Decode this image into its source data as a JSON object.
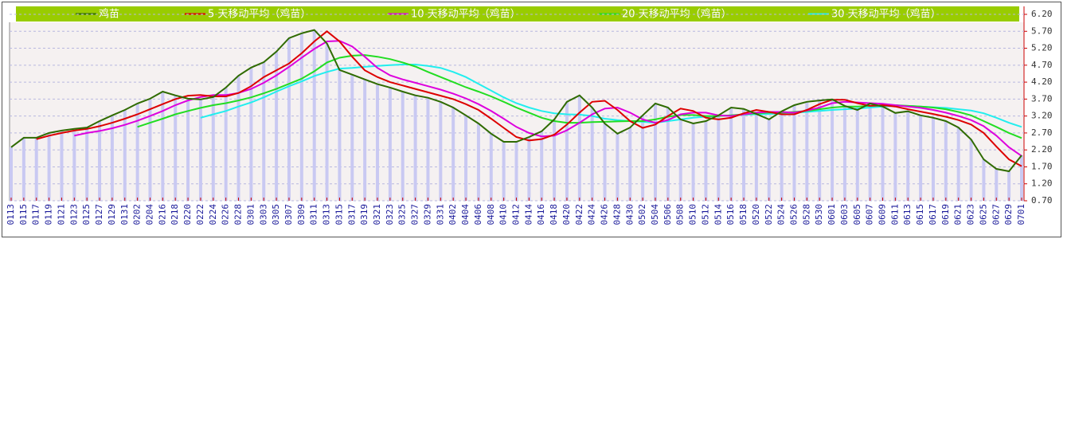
{
  "chart_data": {
    "type": "line",
    "categories": [
      "0113",
      "0115",
      "0117",
      "0119",
      "0121",
      "0123",
      "0125",
      "0127",
      "0129",
      "0131",
      "0202",
      "0204",
      "0216",
      "0218",
      "0220",
      "0222",
      "0224",
      "0226",
      "0228",
      "0301",
      "0303",
      "0305",
      "0307",
      "0309",
      "0311",
      "0313",
      "0315",
      "0317",
      "0319",
      "0321",
      "0323",
      "0325",
      "0327",
      "0329",
      "0331",
      "0402",
      "0404",
      "0406",
      "0408",
      "0410",
      "0412",
      "0414",
      "0416",
      "0418",
      "0420",
      "0422",
      "0424",
      "0426",
      "0428",
      "0430",
      "0502",
      "0504",
      "0506",
      "0508",
      "0510",
      "0512",
      "0514",
      "0516",
      "0518",
      "0520",
      "0522",
      "0524",
      "0526",
      "0528",
      "0530",
      "0601",
      "0603",
      "0605",
      "0607",
      "0609",
      "0611",
      "0613",
      "0615",
      "0617",
      "0619",
      "0621",
      "0623",
      "0625",
      "0627",
      "0629",
      "0701"
    ],
    "series": [
      {
        "name": "鸡苗",
        "color": "#2f6b00",
        "bar_color": "#c9c9f2",
        "values": [
          2.28,
          2.56,
          2.56,
          2.7,
          2.77,
          2.82,
          2.86,
          3.05,
          3.22,
          3.38,
          3.57,
          3.71,
          3.92,
          3.81,
          3.71,
          3.69,
          3.76,
          4.04,
          4.39,
          4.63,
          4.79,
          5.1,
          5.5,
          5.64,
          5.74,
          5.34,
          4.56,
          4.42,
          4.28,
          4.14,
          4.04,
          3.92,
          3.81,
          3.74,
          3.62,
          3.45,
          3.22,
          2.98,
          2.68,
          2.44,
          2.44,
          2.58,
          2.75,
          3.1,
          3.62,
          3.81,
          3.45,
          2.98,
          2.68,
          2.86,
          3.22,
          3.57,
          3.45,
          3.1,
          2.98,
          3.05,
          3.22,
          3.45,
          3.41,
          3.26,
          3.1,
          3.34,
          3.52,
          3.62,
          3.66,
          3.69,
          3.5,
          3.38,
          3.57,
          3.48,
          3.29,
          3.34,
          3.22,
          3.15,
          3.05,
          2.86,
          2.51,
          1.92,
          1.64,
          1.57,
          2.04
        ]
      },
      {
        "name": "5 天移动平均（鸡苗）",
        "color": "#dd0000",
        "values": [
          null,
          null,
          2.52,
          2.62,
          2.7,
          2.77,
          2.82,
          2.9,
          3.0,
          3.12,
          3.25,
          3.4,
          3.55,
          3.7,
          3.8,
          3.82,
          3.78,
          3.78,
          3.88,
          4.08,
          4.35,
          4.55,
          4.75,
          5.05,
          5.4,
          5.7,
          5.4,
          4.95,
          4.55,
          4.35,
          4.2,
          4.1,
          4.0,
          3.9,
          3.8,
          3.7,
          3.55,
          3.38,
          3.12,
          2.85,
          2.58,
          2.48,
          2.52,
          2.65,
          2.95,
          3.3,
          3.62,
          3.65,
          3.38,
          3.05,
          2.85,
          2.95,
          3.2,
          3.42,
          3.35,
          3.15,
          3.1,
          3.15,
          3.28,
          3.38,
          3.32,
          3.25,
          3.25,
          3.38,
          3.55,
          3.68,
          3.68,
          3.58,
          3.5,
          3.52,
          3.48,
          3.4,
          3.33,
          3.26,
          3.18,
          3.08,
          2.95,
          2.7,
          2.3,
          1.92,
          1.72
        ]
      },
      {
        "name": "10 天移动平均（鸡苗）",
        "color": "#dd00dd",
        "values": [
          null,
          null,
          null,
          null,
          null,
          2.62,
          2.7,
          2.76,
          2.84,
          2.94,
          3.06,
          3.2,
          3.35,
          3.52,
          3.66,
          3.76,
          3.82,
          3.82,
          3.88,
          4.0,
          4.18,
          4.4,
          4.65,
          4.92,
          5.18,
          5.4,
          5.42,
          5.25,
          4.95,
          4.62,
          4.4,
          4.28,
          4.18,
          4.08,
          3.98,
          3.86,
          3.72,
          3.55,
          3.35,
          3.12,
          2.88,
          2.7,
          2.6,
          2.62,
          2.78,
          3.0,
          3.25,
          3.42,
          3.45,
          3.3,
          3.1,
          3.0,
          3.08,
          3.25,
          3.3,
          3.3,
          3.22,
          3.2,
          3.25,
          3.3,
          3.32,
          3.32,
          3.3,
          3.36,
          3.45,
          3.58,
          3.62,
          3.6,
          3.58,
          3.56,
          3.52,
          3.48,
          3.44,
          3.38,
          3.3,
          3.2,
          3.08,
          2.9,
          2.62,
          2.28,
          2.02
        ]
      },
      {
        "name": "20 天移动平均（鸡苗）",
        "color": "#22dd22",
        "values": [
          null,
          null,
          null,
          null,
          null,
          null,
          null,
          null,
          null,
          null,
          2.88,
          3.0,
          3.12,
          3.25,
          3.35,
          3.44,
          3.52,
          3.58,
          3.66,
          3.75,
          3.87,
          4.0,
          4.15,
          4.3,
          4.52,
          4.78,
          4.92,
          4.98,
          5.0,
          4.95,
          4.88,
          4.78,
          4.66,
          4.5,
          4.35,
          4.2,
          4.05,
          3.92,
          3.78,
          3.62,
          3.45,
          3.3,
          3.15,
          3.05,
          3.0,
          3.0,
          3.02,
          3.03,
          3.04,
          3.05,
          3.05,
          3.1,
          3.18,
          3.23,
          3.23,
          3.2,
          3.2,
          3.22,
          3.25,
          3.28,
          3.3,
          3.3,
          3.32,
          3.35,
          3.4,
          3.45,
          3.48,
          3.48,
          3.5,
          3.5,
          3.52,
          3.5,
          3.48,
          3.45,
          3.4,
          3.32,
          3.22,
          3.05,
          2.88,
          2.7,
          2.55
        ]
      },
      {
        "name": "30 天移动平均（鸡苗）",
        "color": "#22eeee",
        "values": [
          null,
          null,
          null,
          null,
          null,
          null,
          null,
          null,
          null,
          null,
          null,
          null,
          null,
          null,
          null,
          3.15,
          3.25,
          3.35,
          3.48,
          3.6,
          3.75,
          3.92,
          4.08,
          4.22,
          4.38,
          4.5,
          4.6,
          4.62,
          4.65,
          4.68,
          4.7,
          4.72,
          4.72,
          4.68,
          4.62,
          4.5,
          4.35,
          4.15,
          3.95,
          3.75,
          3.58,
          3.45,
          3.35,
          3.28,
          3.25,
          3.24,
          3.2,
          3.12,
          3.08,
          3.05,
          3.03,
          3.0,
          3.05,
          3.1,
          3.15,
          3.18,
          3.2,
          3.22,
          3.24,
          3.25,
          3.26,
          3.28,
          3.3,
          3.32,
          3.35,
          3.38,
          3.4,
          3.42,
          3.45,
          3.48,
          3.5,
          3.5,
          3.48,
          3.46,
          3.44,
          3.4,
          3.36,
          3.28,
          3.15,
          3.0,
          2.88
        ]
      }
    ],
    "ylim": [
      0.7,
      6.2
    ],
    "yticks": [
      {
        "value": 0.7,
        "label": "0.70"
      },
      {
        "value": 1.2,
        "label": "1.20"
      },
      {
        "value": 1.7,
        "label": "1.70"
      },
      {
        "value": 2.2,
        "label": "2.20"
      },
      {
        "value": 2.7,
        "label": "2.70"
      },
      {
        "value": 3.2,
        "label": "3.20"
      },
      {
        "value": 3.7,
        "label": "3.70"
      },
      {
        "value": 4.2,
        "label": "4.20"
      },
      {
        "value": 4.7,
        "label": "4.70"
      },
      {
        "value": 5.2,
        "label": "5.20"
      },
      {
        "value": 5.7,
        "label": "5.70"
      },
      {
        "value": 6.2,
        "label": "6.20"
      }
    ],
    "grid": true,
    "legend": "top",
    "legend_color": "#99cc00"
  }
}
